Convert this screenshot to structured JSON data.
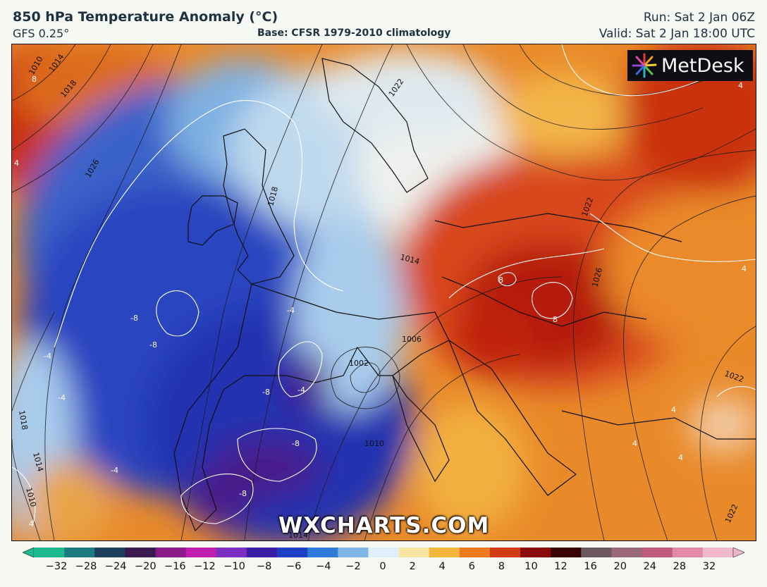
{
  "header": {
    "title": "850 hPa Temperature Anomaly (°C)",
    "model": "GFS 0.25°",
    "base": "Base: CFSR 1979-2010 climatology",
    "run": "Run: Sat 2 Jan 06Z",
    "valid": "Valid: Sat 2 Jan 18:00 UTC"
  },
  "logo": {
    "text": "MetDesk"
  },
  "watermark": "WXCHARTS.COM",
  "colorbar": {
    "ticks": [
      "−32",
      "−28",
      "−24",
      "−20",
      "−16",
      "−12",
      "−10",
      "−8",
      "−6",
      "−4",
      "−2",
      "0",
      "2",
      "4",
      "6",
      "8",
      "10",
      "12",
      "16",
      "20",
      "24",
      "28",
      "32"
    ],
    "colors": [
      "#1fb98f",
      "#1b7b7e",
      "#1c3f5e",
      "#3a1a4f",
      "#8a1a8a",
      "#c21fb0",
      "#7a2fbf",
      "#3b1fa5",
      "#1f3fc4",
      "#2f7ad6",
      "#7fb6e6",
      "#dfeef8",
      "#fbe5a3",
      "#f5b73a",
      "#ee7a1f",
      "#cf3b12",
      "#8a0a0a",
      "#3a0303",
      "#6a5a60",
      "#9a6a78",
      "#c25a80",
      "#e08aa8",
      "#f0b8cc"
    ]
  },
  "contour_labels": [
    {
      "text": "1010",
      "kind": "isobar"
    },
    {
      "text": "1014",
      "kind": "isobar"
    },
    {
      "text": "1018",
      "kind": "isobar"
    },
    {
      "text": "1026",
      "kind": "isobar"
    },
    {
      "text": "1022",
      "kind": "isobar"
    },
    {
      "text": "1014",
      "kind": "isobar"
    },
    {
      "text": "1018",
      "kind": "isobar"
    },
    {
      "text": "1022",
      "kind": "isobar"
    },
    {
      "text": "1026",
      "kind": "isobar"
    },
    {
      "text": "1006",
      "kind": "isobar"
    },
    {
      "text": "1002",
      "kind": "isobar"
    },
    {
      "text": "1010",
      "kind": "isobar"
    },
    {
      "text": "1018",
      "kind": "isobar"
    },
    {
      "text": "1014",
      "kind": "isobar"
    },
    {
      "text": "1010",
      "kind": "isobar"
    },
    {
      "text": "1014",
      "kind": "isobar"
    },
    {
      "text": "1022",
      "kind": "isobar"
    },
    {
      "text": "1022",
      "kind": "isobar"
    },
    {
      "text": "-8",
      "kind": "anomaly"
    },
    {
      "text": "-8",
      "kind": "anomaly"
    },
    {
      "text": "-8",
      "kind": "anomaly"
    },
    {
      "text": "-8",
      "kind": "anomaly"
    },
    {
      "text": "-8",
      "kind": "anomaly"
    },
    {
      "text": "-4",
      "kind": "anomaly"
    },
    {
      "text": "-4",
      "kind": "anomaly"
    },
    {
      "text": "-4",
      "kind": "anomaly"
    },
    {
      "text": "-4",
      "kind": "anomaly"
    },
    {
      "text": "-4",
      "kind": "anomaly"
    },
    {
      "text": "8",
      "kind": "anomaly"
    },
    {
      "text": "8",
      "kind": "anomaly"
    },
    {
      "text": "8",
      "kind": "anomaly"
    },
    {
      "text": "4",
      "kind": "anomaly"
    },
    {
      "text": "4",
      "kind": "anomaly"
    },
    {
      "text": "4",
      "kind": "anomaly"
    },
    {
      "text": "4",
      "kind": "anomaly"
    },
    {
      "text": "4",
      "kind": "anomaly"
    },
    {
      "text": "4",
      "kind": "anomaly"
    },
    {
      "text": "4",
      "kind": "anomaly"
    }
  ]
}
